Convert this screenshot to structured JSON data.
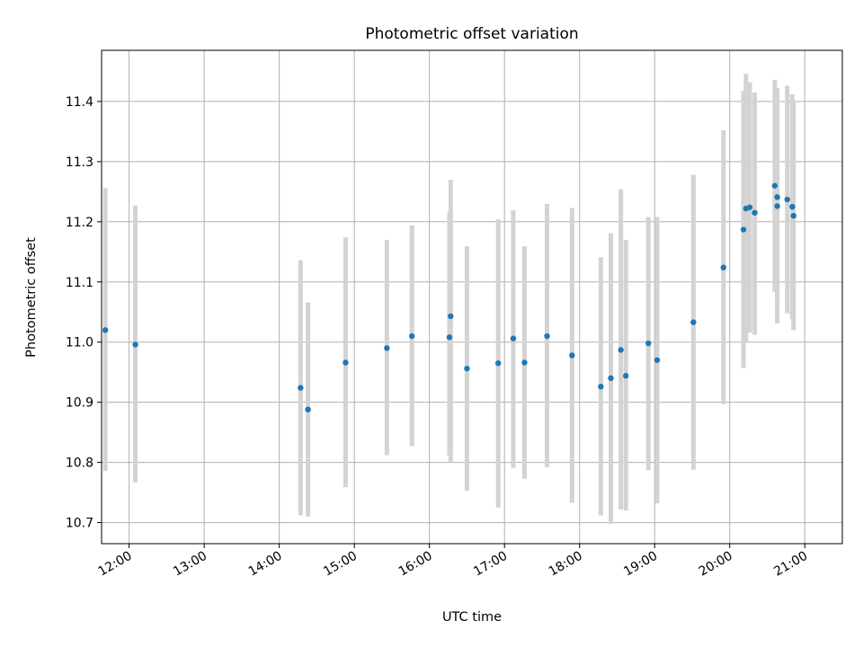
{
  "chart_data": {
    "type": "scatter",
    "title": "Photometric offset variation",
    "xlabel": "UTC time",
    "ylabel": "Photometric offset",
    "x_unit": "UTC time (HH:MM)",
    "xlim": [
      "11:38",
      "21:30"
    ],
    "ylim": [
      10.665,
      11.485
    ],
    "xticks": [
      "12:00",
      "13:00",
      "14:00",
      "15:00",
      "16:00",
      "17:00",
      "18:00",
      "19:00",
      "20:00",
      "21:00"
    ],
    "yticks": [
      10.7,
      10.8,
      10.9,
      11.0,
      11.1,
      11.2,
      11.3,
      11.4
    ],
    "ytick_labels": [
      "10.7",
      "10.8",
      "10.9",
      "11.0",
      "11.1",
      "11.2",
      "11.3",
      "11.4"
    ],
    "grid": true,
    "colors": {
      "points": "#1f77b4",
      "errorbars": "#d3d3d3",
      "grid": "#b0b0b0"
    },
    "points": [
      {
        "x": "11:41",
        "y": 11.02,
        "ylow": 10.786,
        "yhigh": 11.256
      },
      {
        "x": "12:05",
        "y": 10.996,
        "ylow": 10.767,
        "yhigh": 11.227
      },
      {
        "x": "14:17",
        "y": 10.924,
        "ylow": 10.712,
        "yhigh": 11.136
      },
      {
        "x": "14:23",
        "y": 10.888,
        "ylow": 10.71,
        "yhigh": 11.066
      },
      {
        "x": "14:53",
        "y": 10.966,
        "ylow": 10.759,
        "yhigh": 11.174
      },
      {
        "x": "15:26",
        "y": 10.99,
        "ylow": 10.812,
        "yhigh": 11.17
      },
      {
        "x": "15:46",
        "y": 11.01,
        "ylow": 10.827,
        "yhigh": 11.194
      },
      {
        "x": "16:16",
        "y": 11.008,
        "ylow": 10.812,
        "yhigh": 11.215
      },
      {
        "x": "16:17",
        "y": 11.043,
        "ylow": 10.8,
        "yhigh": 11.27
      },
      {
        "x": "16:30",
        "y": 10.956,
        "ylow": 10.753,
        "yhigh": 11.159
      },
      {
        "x": "16:55",
        "y": 10.965,
        "ylow": 10.725,
        "yhigh": 11.204
      },
      {
        "x": "17:07",
        "y": 11.006,
        "ylow": 10.791,
        "yhigh": 11.219
      },
      {
        "x": "17:16",
        "y": 10.966,
        "ylow": 10.773,
        "yhigh": 11.159
      },
      {
        "x": "17:34",
        "y": 11.01,
        "ylow": 10.792,
        "yhigh": 11.23
      },
      {
        "x": "17:54",
        "y": 10.978,
        "ylow": 10.733,
        "yhigh": 11.223
      },
      {
        "x": "18:17",
        "y": 10.926,
        "ylow": 10.712,
        "yhigh": 11.141
      },
      {
        "x": "18:25",
        "y": 10.94,
        "ylow": 10.698,
        "yhigh": 11.181
      },
      {
        "x": "18:33",
        "y": 10.987,
        "ylow": 10.722,
        "yhigh": 11.254
      },
      {
        "x": "18:37",
        "y": 10.944,
        "ylow": 10.72,
        "yhigh": 11.17
      },
      {
        "x": "18:55",
        "y": 10.998,
        "ylow": 10.787,
        "yhigh": 11.208
      },
      {
        "x": "19:02",
        "y": 10.97,
        "ylow": 10.732,
        "yhigh": 11.208
      },
      {
        "x": "19:31",
        "y": 11.033,
        "ylow": 10.788,
        "yhigh": 11.278
      },
      {
        "x": "19:55",
        "y": 11.124,
        "ylow": 10.897,
        "yhigh": 11.352
      },
      {
        "x": "20:11",
        "y": 11.187,
        "ylow": 10.957,
        "yhigh": 11.418
      },
      {
        "x": "20:13",
        "y": 11.222,
        "ylow": 11.0,
        "yhigh": 11.446
      },
      {
        "x": "20:16",
        "y": 11.224,
        "ylow": 11.016,
        "yhigh": 11.432
      },
      {
        "x": "20:20",
        "y": 11.215,
        "ylow": 11.012,
        "yhigh": 11.415
      },
      {
        "x": "20:36",
        "y": 11.26,
        "ylow": 11.084,
        "yhigh": 11.436
      },
      {
        "x": "20:38",
        "y": 11.241,
        "ylow": 11.031,
        "yhigh": 11.422
      },
      {
        "x": "20:38",
        "y": 11.226,
        "ylow": 11.07,
        "yhigh": 11.4
      },
      {
        "x": "20:46",
        "y": 11.237,
        "ylow": 11.048,
        "yhigh": 11.426
      },
      {
        "x": "20:50",
        "y": 11.225,
        "ylow": 11.038,
        "yhigh": 11.412
      },
      {
        "x": "20:51",
        "y": 11.21,
        "ylow": 11.02,
        "yhigh": 11.4
      }
    ]
  }
}
